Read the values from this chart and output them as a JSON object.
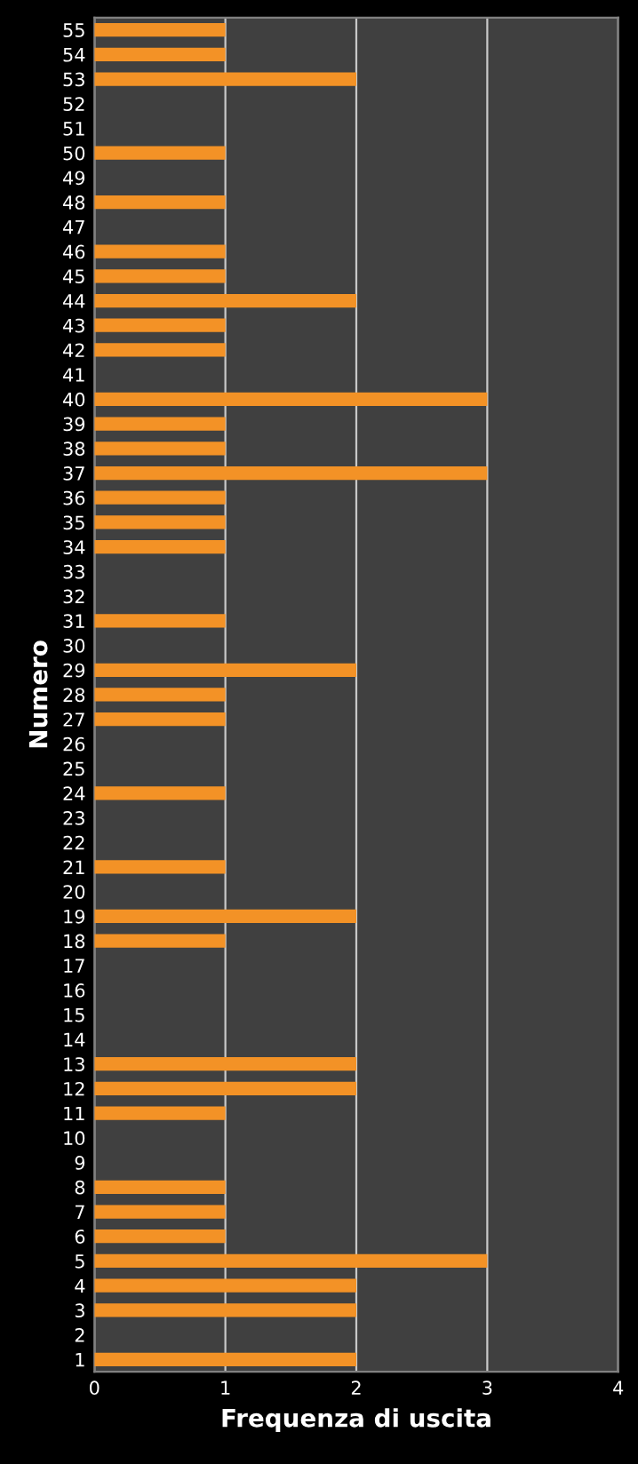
{
  "chart_data": {
    "type": "bar",
    "orientation": "horizontal",
    "xlabel": "Frequenza di uscita",
    "ylabel": "Numero",
    "categories": [
      "55",
      "54",
      "53",
      "52",
      "51",
      "50",
      "49",
      "48",
      "47",
      "46",
      "45",
      "44",
      "43",
      "42",
      "41",
      "40",
      "39",
      "38",
      "37",
      "36",
      "35",
      "34",
      "33",
      "32",
      "31",
      "30",
      "29",
      "28",
      "27",
      "26",
      "25",
      "24",
      "23",
      "22",
      "21",
      "20",
      "19",
      "18",
      "17",
      "16",
      "15",
      "14",
      "13",
      "12",
      "11",
      "10",
      "9",
      "8",
      "7",
      "6",
      "5",
      "4",
      "3",
      "2",
      "1"
    ],
    "values": [
      1,
      1,
      2,
      0,
      0,
      1,
      0,
      1,
      0,
      1,
      1,
      2,
      1,
      1,
      0,
      3,
      1,
      1,
      3,
      1,
      1,
      1,
      0,
      0,
      1,
      0,
      2,
      1,
      1,
      0,
      0,
      1,
      0,
      0,
      1,
      0,
      2,
      1,
      0,
      0,
      0,
      0,
      2,
      2,
      1,
      0,
      0,
      1,
      1,
      1,
      3,
      2,
      2,
      0,
      2
    ],
    "color": "#f39226",
    "xlim": [
      0,
      4
    ],
    "xticks": [
      0,
      1,
      2,
      3,
      4
    ],
    "grid": "x",
    "legend": false
  }
}
